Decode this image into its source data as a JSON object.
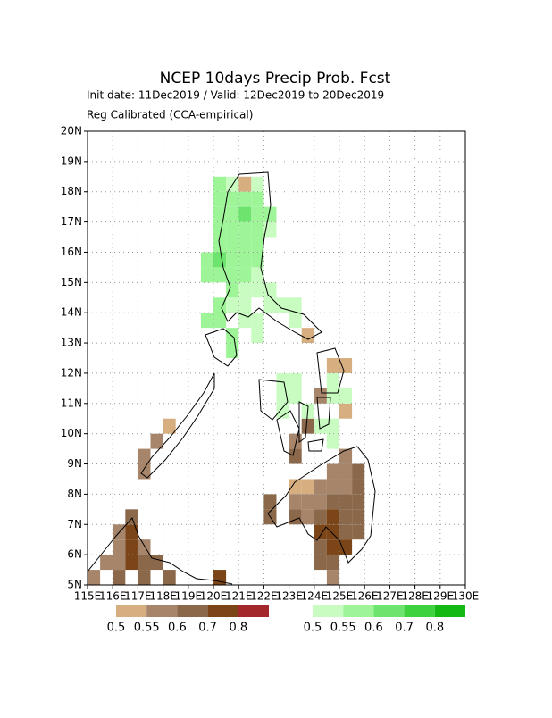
{
  "chart_data": {
    "type": "map",
    "title": "NCEP 10days Precip Prob. Fcst",
    "subtitle": "Init date: 11Dec2019 / Valid: 12Dec2019 to 20Dec2019",
    "note": "Reg Calibrated (CCA-empirical)",
    "xlim": [
      115,
      130
    ],
    "ylim": [
      5,
      20
    ],
    "grid": true,
    "xticks": [
      {
        "value": 115,
        "label": "115E"
      },
      {
        "value": 116,
        "label": "116E"
      },
      {
        "value": 117,
        "label": "117E"
      },
      {
        "value": 118,
        "label": "118E"
      },
      {
        "value": 119,
        "label": "119E"
      },
      {
        "value": 120,
        "label": "120E"
      },
      {
        "value": 121,
        "label": "121E"
      },
      {
        "value": 122,
        "label": "122E"
      },
      {
        "value": 123,
        "label": "123E"
      },
      {
        "value": 124,
        "label": "124E"
      },
      {
        "value": 125,
        "label": "125E"
      },
      {
        "value": 126,
        "label": "126E"
      },
      {
        "value": 127,
        "label": "127E"
      },
      {
        "value": 128,
        "label": "128E"
      },
      {
        "value": 129,
        "label": "129E"
      },
      {
        "value": 130,
        "label": "130E"
      }
    ],
    "yticks": [
      {
        "value": 5,
        "label": "5N"
      },
      {
        "value": 6,
        "label": "6N"
      },
      {
        "value": 7,
        "label": "7N"
      },
      {
        "value": 8,
        "label": "8N"
      },
      {
        "value": 9,
        "label": "9N"
      },
      {
        "value": 10,
        "label": "10N"
      },
      {
        "value": 11,
        "label": "11N"
      },
      {
        "value": 12,
        "label": "12N"
      },
      {
        "value": 13,
        "label": "13N"
      },
      {
        "value": 14,
        "label": "14N"
      },
      {
        "value": 15,
        "label": "15N"
      },
      {
        "value": 16,
        "label": "16N"
      },
      {
        "value": 17,
        "label": "17N"
      },
      {
        "value": 18,
        "label": "18N"
      },
      {
        "value": 19,
        "label": "19N"
      },
      {
        "value": 20,
        "label": "20N"
      }
    ],
    "dry_colorbar": {
      "levels": [
        0.5,
        0.55,
        0.6,
        0.7,
        0.8
      ],
      "colors": [
        "#d6ae80",
        "#a6856a",
        "#8a6849",
        "#7b4518",
        "#a3282c"
      ]
    },
    "wet_colorbar": {
      "levels": [
        0.5,
        0.55,
        0.6,
        0.7,
        0.8
      ],
      "colors": [
        "#c8fcc0",
        "#9ef598",
        "#6de46d",
        "#3ed23e",
        "#14b914"
      ]
    },
    "wet_cells": [
      [
        120,
        18,
        0.55
      ],
      [
        120.5,
        18,
        0.5
      ],
      [
        121.5,
        18,
        0.5
      ],
      [
        120,
        17.5,
        0.55
      ],
      [
        120.5,
        17.5,
        0.55
      ],
      [
        121,
        17.5,
        0.55
      ],
      [
        121.5,
        17.5,
        0.55
      ],
      [
        120,
        17,
        0.55
      ],
      [
        120.5,
        17,
        0.55
      ],
      [
        121,
        17,
        0.6
      ],
      [
        121.5,
        17,
        0.55
      ],
      [
        122,
        17,
        0.55
      ],
      [
        120,
        16.5,
        0.55
      ],
      [
        120.5,
        16.5,
        0.55
      ],
      [
        121,
        16.5,
        0.55
      ],
      [
        121.5,
        16.5,
        0.55
      ],
      [
        122,
        16.5,
        0.5
      ],
      [
        120,
        16,
        0.55
      ],
      [
        120.5,
        16,
        0.55
      ],
      [
        121,
        16,
        0.55
      ],
      [
        121.5,
        16,
        0.55
      ],
      [
        119.5,
        15.5,
        0.55
      ],
      [
        120,
        15.5,
        0.6
      ],
      [
        120.5,
        15.5,
        0.55
      ],
      [
        121,
        15.5,
        0.55
      ],
      [
        121.5,
        15.5,
        0.55
      ],
      [
        119.5,
        15,
        0.55
      ],
      [
        120,
        15,
        0.55
      ],
      [
        120.5,
        15,
        0.55
      ],
      [
        121,
        15,
        0.55
      ],
      [
        121.5,
        15,
        0.5
      ],
      [
        120.5,
        14.5,
        0.55
      ],
      [
        121,
        14.5,
        0.5
      ],
      [
        121.5,
        14.5,
        0.5
      ],
      [
        122,
        14.5,
        0.5
      ],
      [
        120,
        14,
        0.55
      ],
      [
        120.5,
        14,
        0.5
      ],
      [
        121,
        14,
        0.5
      ],
      [
        122,
        14,
        0.5
      ],
      [
        122.5,
        14,
        0.5
      ],
      [
        123,
        14,
        0.5
      ],
      [
        119.5,
        13.5,
        0.55
      ],
      [
        120,
        13.5,
        0.55
      ],
      [
        121,
        13.5,
        0.5
      ],
      [
        121.5,
        13.5,
        0.5
      ],
      [
        123,
        13.5,
        0.5
      ],
      [
        120.5,
        13,
        0.55
      ],
      [
        121.5,
        13,
        0.5
      ],
      [
        120.5,
        12.5,
        0.55
      ],
      [
        122.5,
        11.5,
        0.5
      ],
      [
        123,
        11.5,
        0.5
      ],
      [
        124.5,
        11.5,
        0.5
      ],
      [
        122.5,
        11,
        0.5
      ],
      [
        123,
        11,
        0.5
      ],
      [
        124.5,
        11,
        0.5
      ],
      [
        125,
        11,
        0.5
      ],
      [
        122.5,
        10.5,
        0.5
      ],
      [
        123.5,
        10.5,
        0.5
      ],
      [
        124,
        10,
        0.5
      ],
      [
        124.5,
        10,
        0.5
      ],
      [
        124.5,
        9.5,
        0.5
      ]
    ],
    "dry_cells": [
      [
        121,
        18,
        0.5
      ],
      [
        123.5,
        13,
        0.5
      ],
      [
        124.5,
        12,
        0.5
      ],
      [
        125,
        12,
        0.5
      ],
      [
        124,
        11,
        0.55
      ],
      [
        125,
        10.5,
        0.5
      ],
      [
        118,
        10,
        0.5
      ],
      [
        123.5,
        10,
        0.6
      ],
      [
        117.5,
        9.5,
        0.55
      ],
      [
        123,
        9.5,
        0.55
      ],
      [
        117,
        9,
        0.55
      ],
      [
        123,
        9,
        0.6
      ],
      [
        125,
        9,
        0.55
      ],
      [
        117,
        8.5,
        0.55
      ],
      [
        124.5,
        8.5,
        0.55
      ],
      [
        125,
        8.5,
        0.55
      ],
      [
        125.5,
        8.5,
        0.6
      ],
      [
        123,
        8,
        0.5
      ],
      [
        123.5,
        8,
        0.5
      ],
      [
        124,
        8,
        0.55
      ],
      [
        124.5,
        8,
        0.55
      ],
      [
        125,
        8,
        0.55
      ],
      [
        125.5,
        8,
        0.6
      ],
      [
        122,
        7.5,
        0.6
      ],
      [
        123,
        7.5,
        0.55
      ],
      [
        123.5,
        7.5,
        0.55
      ],
      [
        124,
        7.5,
        0.55
      ],
      [
        124.5,
        7.5,
        0.6
      ],
      [
        125,
        7.5,
        0.6
      ],
      [
        125.5,
        7.5,
        0.6
      ],
      [
        116.5,
        7,
        0.6
      ],
      [
        122,
        7,
        0.6
      ],
      [
        123,
        7,
        0.6
      ],
      [
        123.5,
        7,
        0.55
      ],
      [
        124,
        7,
        0.6
      ],
      [
        124.5,
        7,
        0.7
      ],
      [
        125,
        7,
        0.6
      ],
      [
        125.5,
        7,
        0.6
      ],
      [
        116,
        6.5,
        0.55
      ],
      [
        116.5,
        6.5,
        0.7
      ],
      [
        124,
        6.5,
        0.7
      ],
      [
        124.5,
        6.5,
        0.7
      ],
      [
        125,
        6.5,
        0.6
      ],
      [
        125.5,
        6.5,
        0.6
      ],
      [
        116,
        6,
        0.55
      ],
      [
        116.5,
        6,
        0.7
      ],
      [
        117,
        6,
        0.55
      ],
      [
        124,
        6,
        0.6
      ],
      [
        124.5,
        6,
        0.7
      ],
      [
        125,
        6,
        0.7
      ],
      [
        115.5,
        5.5,
        0.55
      ],
      [
        116,
        5.5,
        0.55
      ],
      [
        116.5,
        5.5,
        0.7
      ],
      [
        117,
        5.5,
        0.6
      ],
      [
        117.5,
        5.5,
        0.6
      ],
      [
        124,
        5.5,
        0.6
      ],
      [
        124.5,
        5.5,
        0.6
      ],
      [
        115,
        5,
        0.55
      ],
      [
        116,
        5,
        0.6
      ],
      [
        117,
        5,
        0.6
      ],
      [
        118,
        5,
        0.6
      ],
      [
        120,
        5,
        0.7
      ],
      [
        124.5,
        5,
        0.55
      ]
    ]
  }
}
